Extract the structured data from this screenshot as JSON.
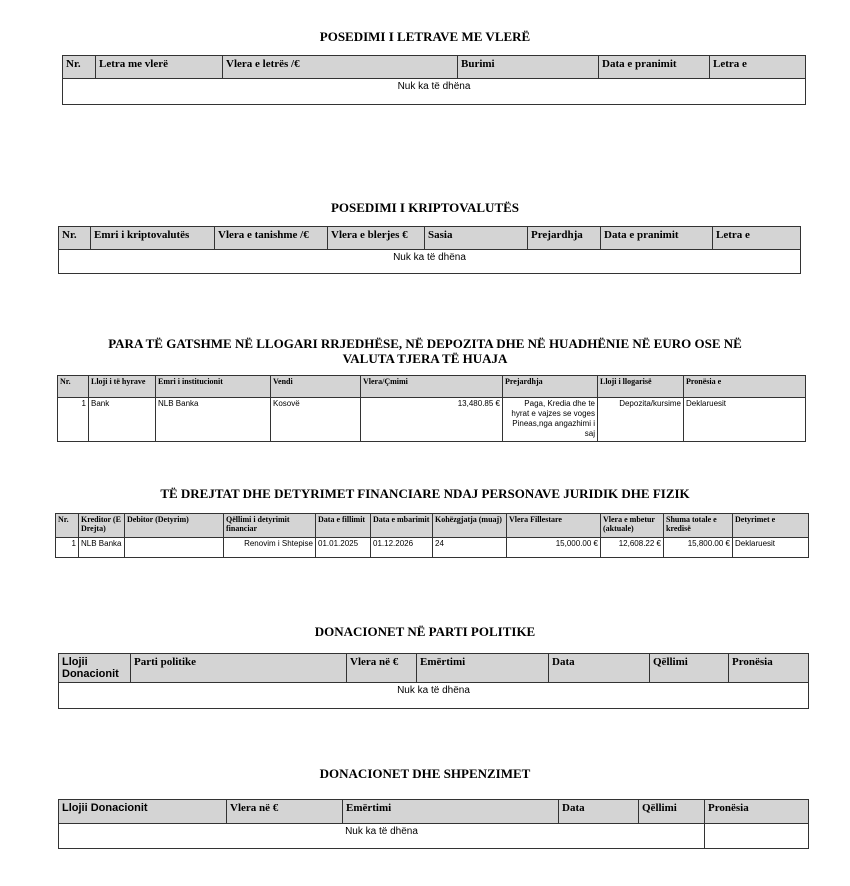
{
  "s1": {
    "title": "POSEDIMI I LETRAVE ME VLERË",
    "headers": [
      "Nr.",
      "Letra me vlerë",
      "Vlera e letrës /€",
      "Burimi",
      "Data e pranimit",
      "Letra e"
    ],
    "empty": "Nuk ka të dhëna"
  },
  "s2": {
    "title": "POSEDIMI I KRIPTOVALUTËS",
    "headers": [
      "Nr.",
      "Emri i kriptovalutës",
      "Vlera e tanishme /€",
      "Vlera e blerjes €",
      "Sasia",
      "Prejardhja",
      "Data e pranimit",
      "Letra e"
    ],
    "empty": "Nuk ka të dhëna"
  },
  "s3": {
    "title1": "PARA TË GATSHME NË LLOGARI RRJEDHËSE, NË DEPOZITA DHE NË HUADHËNIE NË EURO OSE NË",
    "title2": "VALUTA TJERA TË HUAJA",
    "headers": [
      "Nr.",
      "Lloji i të hyrave",
      "Emri i institucionit",
      "Vendi",
      "Vlera/Çmimi",
      "Prejardhja",
      "Lloji i llogarisë",
      "Pronësia e"
    ],
    "row": [
      "1",
      "Bank",
      "NLB Banka",
      "Kosovë",
      "13,480.85 €",
      "Paga, Kredia dhe te hyrat e vajzes se voges Pineas,nga angazhimi i saj",
      "Depozita/kursime",
      "Deklaruesit"
    ]
  },
  "s4": {
    "title": "TË DREJTAT DHE DETYRIMET FINANCIARE NDAJ PERSONAVE JURIDIK DHE FIZIK",
    "headers": [
      "Nr.",
      "Kreditor (E Drejta)",
      "Debitor (Detyrim)",
      "Qëllimi i detyrimit financiar",
      "Data e fillimit",
      "Data e mbarimit",
      "Kohëzgjatja (muaj)",
      "Vlera Fillestare",
      "Vlera e mbetur (aktuale)",
      "Shuma totale e kredisë",
      "Detyrimet e"
    ],
    "row": [
      "1",
      "NLB Banka",
      "",
      "Renovim i Shtepise",
      "01.01.2025",
      "01.12.2026",
      "24",
      "15,000.00 €",
      "12,608.22 €",
      "15,800.00 €",
      "Deklaruesit"
    ]
  },
  "s5": {
    "title": "DONACIONET NË PARTI POLITIKE",
    "headers": [
      "Llojii Donacionit",
      "Parti politike",
      "Vlera në €",
      "Emërtimi",
      "Data",
      "Qëllimi",
      "Pronësia"
    ],
    "empty": "Nuk ka të dhëna"
  },
  "s6": {
    "title": "DONACIONET DHE SHPENZIMET",
    "headers": [
      "Llojii Donacionit",
      "Vlera në €",
      "Emërtimi",
      "Data",
      "Qëllimi",
      "Pronësia"
    ],
    "empty": "Nuk ka të dhëna"
  }
}
